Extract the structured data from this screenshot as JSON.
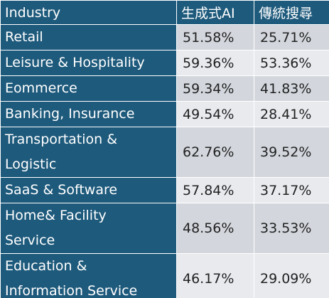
{
  "table": {
    "header": [
      "Industry",
      "生成式AI",
      "傳統搜尋"
    ],
    "rows": [
      [
        [
          "Retail"
        ],
        "51.58%",
        "25.71%"
      ],
      [
        [
          "Leisure & Hospitality"
        ],
        "59.36%",
        "53.36%"
      ],
      [
        [
          "Eommerce"
        ],
        "59.34%",
        "41.83%"
      ],
      [
        [
          "Banking, Insurance"
        ],
        "49.54%",
        "28.41%"
      ],
      [
        [
          "Transportation &",
          "Logistic"
        ],
        "62.76%",
        "39.52%"
      ],
      [
        [
          "SaaS & Software"
        ],
        "57.84%",
        "37.17%"
      ],
      [
        [
          "Home& Facility",
          "Service"
        ],
        "48.56%",
        "33.53%"
      ],
      [
        [
          "Education &",
          "Information Service"
        ],
        "46.17%",
        "29.09%"
      ]
    ]
  }
}
